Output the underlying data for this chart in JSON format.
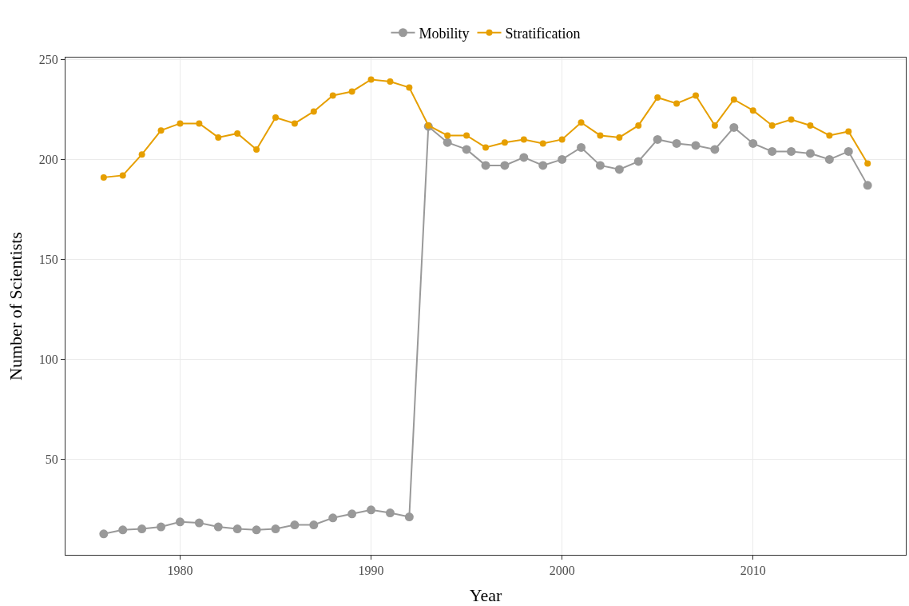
{
  "chart_data": {
    "type": "line",
    "xlabel": "Year",
    "ylabel": "Number of Scientists",
    "x": [
      1976,
      1977,
      1978,
      1979,
      1980,
      1981,
      1982,
      1983,
      1984,
      1985,
      1986,
      1987,
      1988,
      1989,
      1990,
      1991,
      1992,
      1993,
      1994,
      1995,
      1996,
      1997,
      1998,
      1999,
      2000,
      2001,
      2002,
      2003,
      2004,
      2005,
      2006,
      2007,
      2008,
      2009,
      2010,
      2011,
      2012,
      2013,
      2014,
      2015,
      2016
    ],
    "series": [
      {
        "name": "Mobility",
        "color": "#999999",
        "values": [
          12.5,
          14.5,
          15,
          16,
          18.5,
          18,
          16,
          15,
          14.5,
          15,
          17,
          17,
          20.5,
          22.5,
          24.5,
          23,
          21,
          216.5,
          208.5,
          205,
          197,
          197,
          201,
          197,
          200,
          206,
          197,
          195,
          199,
          210,
          208,
          207,
          205,
          216,
          208,
          204,
          204,
          203,
          200,
          204,
          187
        ]
      },
      {
        "name": "Stratification",
        "color": "#e69f00",
        "values": [
          191,
          192,
          202.5,
          214.5,
          218,
          218,
          211,
          213,
          205,
          221,
          218,
          224,
          232,
          234,
          240,
          239,
          236,
          217,
          212,
          212,
          206,
          208.5,
          210,
          208,
          210,
          218.5,
          212,
          211,
          217,
          231,
          228,
          232,
          217,
          230,
          224.5,
          217,
          220,
          217,
          212,
          214,
          198
        ]
      }
    ],
    "xlim": [
      1974,
      2018
    ],
    "xticks": [
      1980,
      1990,
      2000,
      2010
    ],
    "ylim": [
      2,
      251
    ],
    "yticks": [
      50,
      100,
      150,
      200,
      250
    ],
    "grid": true,
    "legend": "top",
    "marker": "circle",
    "line_style": "solid"
  }
}
